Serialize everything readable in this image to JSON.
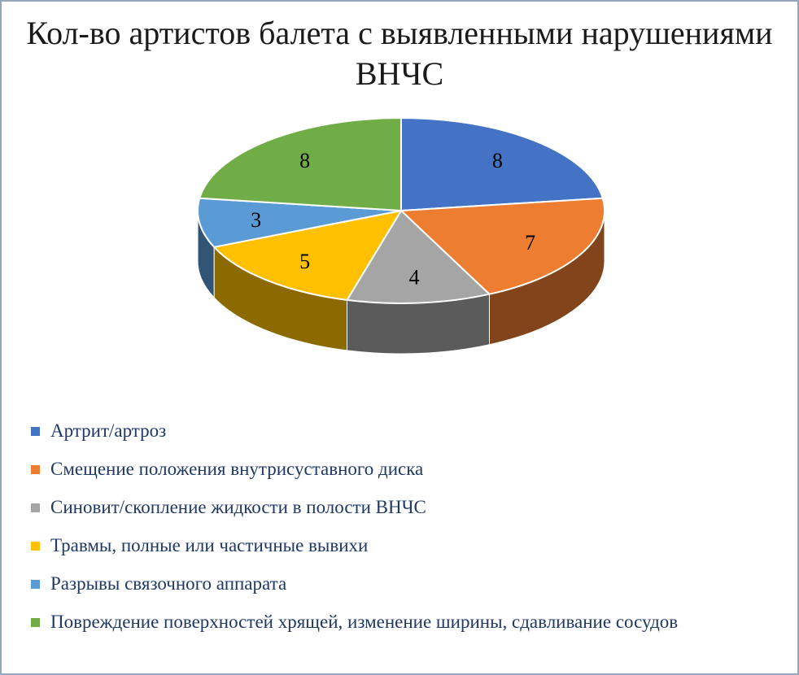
{
  "page": {
    "background": "#ffffff",
    "border_color": "#94a7bd"
  },
  "chart_data": {
    "type": "pie",
    "style_3d": true,
    "title": "Кол-во артистов балета с выявленными нарушениями ВНЧС",
    "categories": [
      "Артрит/артроз",
      "Смещение положения внутрисуставного диска",
      "Синовит/скопление жидкости в полости ВНЧС",
      "Травмы, полные или частичные вывихи",
      "Разрывы связочного аппарата",
      "Повреждение поверхностей хрящей, изменение ширины, сдавливание сосудов"
    ],
    "values": [
      8,
      7,
      4,
      5,
      3,
      8
    ],
    "data_labels": [
      "8",
      "7",
      "4",
      "5",
      "3",
      "8"
    ],
    "colors": [
      "#4472C4",
      "#ED7D31",
      "#A5A5A5",
      "#FFC000",
      "#5B9BD5",
      "#70AD47"
    ],
    "start_angle": "12 o'clock",
    "direction": "clockwise",
    "legend_position": "bottom-left",
    "grid": "off",
    "title_color": "#1a1a1a",
    "legend_text_color": "#1f3864",
    "data_label_color": "#000000"
  }
}
